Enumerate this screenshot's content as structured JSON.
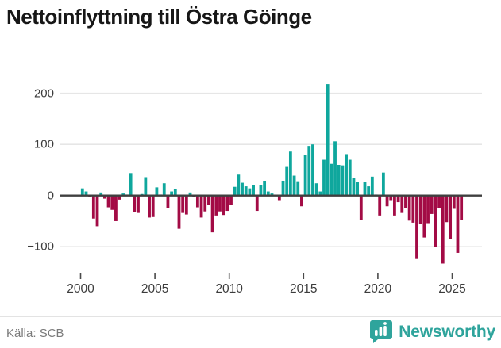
{
  "title": "Nettoinflyttning till Östra Göinge",
  "footer": {
    "source": "Källa: SCB",
    "brand_name": "Newsworthy"
  },
  "colors": {
    "positive_bar": "#0fa79d",
    "negative_bar": "#a30b45",
    "brand_teal": "#2fa49c",
    "grid": "#e6e6e6",
    "zero_axis": "#3f3f3f",
    "tick": "#4a4a4a",
    "axis_text": "#3c3c3c"
  },
  "chart_data": {
    "type": "bar",
    "title": "Nettoinflyttning till Östra Göinge",
    "xlabel": "",
    "ylabel": "",
    "frequency": "quarterly",
    "start_period": "2000Q1",
    "end_period": "2025Q3",
    "x_tick_labels": [
      "2000",
      "2005",
      "2010",
      "2015",
      "2020",
      "2025"
    ],
    "y_ticks": [
      200,
      100,
      0,
      -100
    ],
    "y_tick_labels": [
      "200",
      "100",
      "0",
      "−100"
    ],
    "ylim": [
      -150,
      235
    ],
    "grid": "horizontal",
    "legend": "none",
    "series": [
      {
        "name": "Nettoinflyttning",
        "values": [
          14,
          8,
          -2,
          -45,
          -60,
          6,
          -6,
          -23,
          -28,
          -50,
          -8,
          4,
          2,
          44,
          -32,
          -34,
          3,
          36,
          -43,
          -42,
          16,
          2,
          24,
          -25,
          8,
          12,
          -65,
          -34,
          -37,
          6,
          -2,
          -23,
          -43,
          -31,
          -18,
          -72,
          -39,
          -31,
          -38,
          -30,
          -18,
          17,
          41,
          25,
          18,
          14,
          21,
          -30,
          20,
          29,
          8,
          4,
          0,
          -9,
          29,
          56,
          86,
          39,
          28,
          -21,
          80,
          97,
          100,
          24,
          8,
          70,
          218,
          62,
          106,
          60,
          59,
          81,
          70,
          34,
          26,
          -47,
          26,
          18,
          37,
          2,
          -39,
          45,
          -21,
          -9,
          -39,
          -13,
          -34,
          -25,
          -49,
          -53,
          -124,
          -56,
          -82,
          -54,
          -36,
          -100,
          -25,
          -133,
          -52,
          -85,
          -26,
          -112,
          -47
        ]
      }
    ]
  }
}
